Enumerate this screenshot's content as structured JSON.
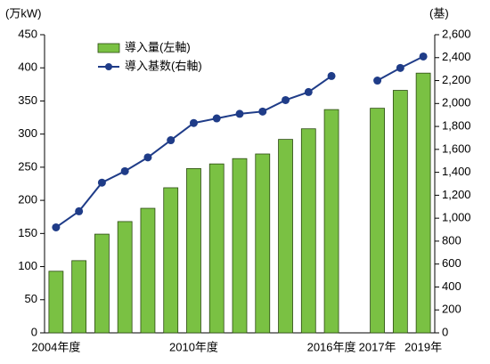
{
  "chart_data": {
    "type": "bar-line",
    "y_label": "(万kW)",
    "y2_label": "(基)",
    "categories": [
      "2004年度",
      null,
      null,
      null,
      null,
      null,
      "2010年度",
      null,
      null,
      null,
      null,
      null,
      "2016年度",
      null,
      "2017年",
      null,
      "2019年"
    ],
    "series": [
      {
        "name": "導入量(左軸)",
        "type": "bar",
        "color": "#7ac143",
        "values": [
          93,
          109,
          149,
          168,
          188,
          219,
          248,
          255,
          263,
          270,
          292,
          308,
          337,
          null,
          339,
          366,
          392
        ]
      },
      {
        "name": "導入基数(右軸)",
        "type": "line",
        "axis": "y2",
        "color": "#1f3c88",
        "values": [
          920,
          1060,
          1310,
          1410,
          1530,
          1680,
          1830,
          1870,
          1910,
          1930,
          2030,
          2100,
          2240,
          null,
          2200,
          2310,
          2410
        ]
      }
    ],
    "ylim": [
      0,
      450
    ],
    "yticks": [
      0,
      50,
      100,
      150,
      200,
      250,
      300,
      350,
      400,
      450
    ],
    "y2lim": [
      0,
      2600
    ],
    "y2ticks": [
      0,
      200,
      400,
      600,
      800,
      {
        "value": 1000,
        "label": "1,000"
      },
      {
        "value": 1200,
        "label": "1,200"
      },
      {
        "value": 1400,
        "label": "1,400"
      },
      {
        "value": 1600,
        "label": "1,600"
      },
      {
        "value": 1800,
        "label": "1,800"
      },
      {
        "value": 2000,
        "label": "2,000"
      },
      {
        "value": 2200,
        "label": "2,200"
      },
      {
        "value": 2400,
        "label": "2,400"
      },
      {
        "value": 2600,
        "label": "2,600"
      }
    ],
    "legend": "top-left"
  }
}
